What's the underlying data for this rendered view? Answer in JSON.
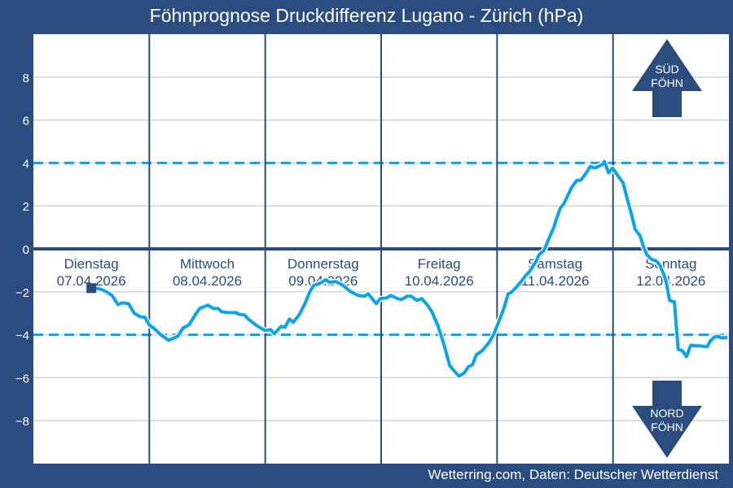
{
  "chart_data": {
    "type": "line",
    "title": "Föhnprognose Druckdifferenz Lugano - Zürich (hPa)",
    "xlabel": "",
    "ylabel": "",
    "ylim": [
      -10,
      10
    ],
    "xlim_hours": [
      0,
      144
    ],
    "yticks": [
      8,
      6,
      4,
      2,
      0,
      -2,
      -4,
      -6,
      -8
    ],
    "ytick_labels": [
      "8",
      "6",
      "4",
      "2",
      "0",
      "−2",
      "−4",
      "−6",
      "−8"
    ],
    "grid": true,
    "threshold_lines": [
      4,
      -4
    ],
    "days": [
      {
        "name": "Dienstag",
        "date": "07.04.2026"
      },
      {
        "name": "Mittwoch",
        "date": "08.04.2026"
      },
      {
        "name": "Donnerstag",
        "date": "09.04.2026"
      },
      {
        "name": "Freitag",
        "date": "10.04.2026"
      },
      {
        "name": "Samstag",
        "date": "11.04.2026"
      },
      {
        "name": "Sonntag",
        "date": "12.04.2026"
      }
    ],
    "current_marker": {
      "hour": 12,
      "value": -1.83
    },
    "series": [
      {
        "name": "Druckdifferenz",
        "color": "#0aa3ee",
        "points": [
          [
            12,
            -1.83
          ],
          [
            13.7,
            -1.86
          ],
          [
            15,
            -1.98
          ],
          [
            16.3,
            -2.17
          ],
          [
            17.5,
            -2.59
          ],
          [
            18.4,
            -2.51
          ],
          [
            19.7,
            -2.55
          ],
          [
            20.9,
            -3.0
          ],
          [
            22.1,
            -3.16
          ],
          [
            23.1,
            -3.19
          ],
          [
            24,
            -3.54
          ],
          [
            25.1,
            -3.73
          ],
          [
            26.3,
            -3.99
          ],
          [
            28,
            -4.26
          ],
          [
            29.9,
            -4.07
          ],
          [
            31,
            -3.69
          ],
          [
            32.2,
            -3.54
          ],
          [
            33.6,
            -3.04
          ],
          [
            34.4,
            -2.78
          ],
          [
            36.1,
            -2.62
          ],
          [
            37.3,
            -2.78
          ],
          [
            38.3,
            -2.78
          ],
          [
            39,
            -2.93
          ],
          [
            40.3,
            -2.97
          ],
          [
            42,
            -2.97
          ],
          [
            42.5,
            -3.04
          ],
          [
            43.7,
            -3.08
          ],
          [
            44.5,
            -3.27
          ],
          [
            46.2,
            -3.57
          ],
          [
            47.9,
            -3.8
          ],
          [
            49.1,
            -3.76
          ],
          [
            49.9,
            -3.95
          ],
          [
            51.3,
            -3.61
          ],
          [
            52.1,
            -3.65
          ],
          [
            53,
            -3.27
          ],
          [
            53.8,
            -3.42
          ],
          [
            55.1,
            -3.04
          ],
          [
            56.3,
            -2.51
          ],
          [
            57.2,
            -2.02
          ],
          [
            58,
            -1.71
          ],
          [
            59.4,
            -1.6
          ],
          [
            60.5,
            -1.44
          ],
          [
            61.4,
            -1.56
          ],
          [
            62.6,
            -1.52
          ],
          [
            63.9,
            -1.67
          ],
          [
            65.6,
            -1.98
          ],
          [
            67.3,
            -2.17
          ],
          [
            68.5,
            -2.21
          ],
          [
            69.3,
            -2.09
          ],
          [
            70.3,
            -2.36
          ],
          [
            71,
            -2.55
          ],
          [
            71.8,
            -2.32
          ],
          [
            73.2,
            -2.28
          ],
          [
            74,
            -2.17
          ],
          [
            75.4,
            -2.32
          ],
          [
            76.2,
            -2.36
          ],
          [
            77.4,
            -2.21
          ],
          [
            78.2,
            -2.21
          ],
          [
            79.4,
            -2.4
          ],
          [
            80.4,
            -2.32
          ],
          [
            81.6,
            -2.62
          ],
          [
            82.5,
            -2.93
          ],
          [
            83.8,
            -3.61
          ],
          [
            85,
            -4.45
          ],
          [
            86.2,
            -5.44
          ],
          [
            87.2,
            -5.7
          ],
          [
            88.1,
            -5.93
          ],
          [
            89.2,
            -5.78
          ],
          [
            90.1,
            -5.48
          ],
          [
            90.9,
            -5.4
          ],
          [
            91.7,
            -4.94
          ],
          [
            92.9,
            -4.75
          ],
          [
            94.3,
            -4.37
          ],
          [
            95.3,
            -3.99
          ],
          [
            96.3,
            -3.42
          ],
          [
            97.3,
            -2.85
          ],
          [
            98.3,
            -2.09
          ],
          [
            99,
            -2.02
          ],
          [
            99.8,
            -1.83
          ],
          [
            101,
            -1.52
          ],
          [
            101.9,
            -1.25
          ],
          [
            102.7,
            -1.06
          ],
          [
            104.1,
            -0.57
          ],
          [
            104.7,
            -0.27
          ],
          [
            105.7,
            -0.08
          ],
          [
            106.9,
            0.57
          ],
          [
            107.8,
            1.03
          ],
          [
            108.3,
            1.41
          ],
          [
            109.1,
            1.9
          ],
          [
            109.8,
            2.09
          ],
          [
            110.6,
            2.47
          ],
          [
            111.5,
            2.89
          ],
          [
            112.5,
            3.19
          ],
          [
            113.3,
            3.19
          ],
          [
            114.2,
            3.46
          ],
          [
            115.3,
            3.84
          ],
          [
            116.2,
            3.76
          ],
          [
            117,
            3.84
          ],
          [
            117.9,
            3.95
          ],
          [
            118.2,
            4.07
          ],
          [
            119.1,
            3.54
          ],
          [
            119.9,
            3.76
          ],
          [
            121.3,
            3.31
          ],
          [
            122.1,
            3.08
          ],
          [
            122.9,
            2.36
          ],
          [
            123.8,
            1.63
          ],
          [
            124.6,
            0.91
          ],
          [
            125.6,
            0.61
          ],
          [
            126.3,
            0.11
          ],
          [
            127,
            -0.27
          ],
          [
            128,
            -0.49
          ],
          [
            129,
            -0.57
          ],
          [
            129.7,
            -0.76
          ],
          [
            130.5,
            -1.18
          ],
          [
            131,
            -1.52
          ],
          [
            131.7,
            -2.4
          ],
          [
            132.7,
            -2.47
          ],
          [
            133.5,
            -4.68
          ],
          [
            134.4,
            -4.75
          ],
          [
            135.2,
            -5.02
          ],
          [
            136.1,
            -4.49
          ],
          [
            137.3,
            -4.52
          ],
          [
            138.1,
            -4.52
          ],
          [
            139.5,
            -4.56
          ],
          [
            140.1,
            -4.3
          ],
          [
            141,
            -4.11
          ],
          [
            141.8,
            -4.07
          ],
          [
            142.3,
            -4.14
          ],
          [
            143.7,
            -4.14
          ]
        ]
      }
    ]
  },
  "arrows": {
    "south": {
      "line1": "SÜD",
      "line2": "FÖHN"
    },
    "north": {
      "line1": "NORD",
      "line2": "FÖHN"
    }
  },
  "footer": "Wetterring.com, Daten: Deutscher Wetterdienst",
  "colors": {
    "background": "#2a4c7f",
    "line": "#0aa3ee",
    "threshold": "#0aa3ee",
    "grid": "#d3d3d3",
    "day_line": "#2a4c7f"
  }
}
